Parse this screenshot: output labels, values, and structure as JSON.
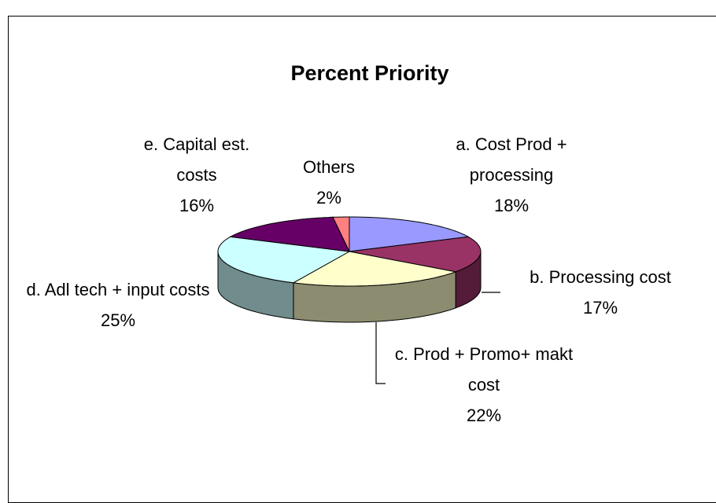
{
  "chart_data": {
    "type": "pie",
    "title": "Percent Priority",
    "categories": [
      "a. Cost  Prod + processing",
      "b. Processing cost",
      "c. Prod + Promo+ makt cost",
      "d. Adl tech + input costs",
      "e. Capital est. costs",
      "Others"
    ],
    "values": [
      18,
      17,
      22,
      25,
      16,
      2
    ],
    "value_labels": [
      "18%",
      "17%",
      "22%",
      "25%",
      "16%",
      "2%"
    ],
    "colors": [
      "#9999ff",
      "#993366",
      "#ffffcc",
      "#ccffff",
      "#660066",
      "#ff8080"
    ]
  }
}
